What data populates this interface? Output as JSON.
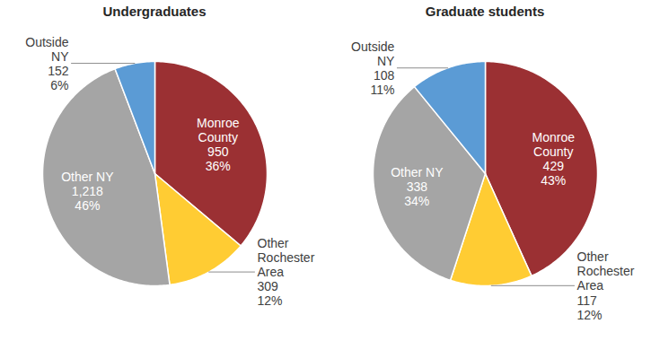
{
  "chart_data": [
    {
      "type": "pie",
      "title": "Undergraduates",
      "categories": [
        "Monroe County",
        "Other Rochester Area",
        "Other NY",
        "Outside NY"
      ],
      "values": [
        950,
        309,
        1218,
        152
      ],
      "value_labels": [
        "950",
        "309",
        "1,218",
        "152"
      ],
      "percentages": [
        36,
        12,
        46,
        6
      ],
      "percentage_labels": [
        "36%",
        "12%",
        "46%",
        "6%"
      ],
      "colors": [
        "#9b3033",
        "#ffcc33",
        "#a5a5a5",
        "#5b9bd5"
      ],
      "data_labels": true
    },
    {
      "type": "pie",
      "title": "Graduate students",
      "categories": [
        "Monroe County",
        "Other Rochester Area",
        "Other NY",
        "Outside NY"
      ],
      "values": [
        429,
        117,
        338,
        108
      ],
      "value_labels": [
        "429",
        "117",
        "338",
        "108"
      ],
      "percentages": [
        43,
        12,
        34,
        11
      ],
      "percentage_labels": [
        "43%",
        "12%",
        "34%",
        "11%"
      ],
      "colors": [
        "#9b3033",
        "#ffcc33",
        "#a5a5a5",
        "#5b9bd5"
      ],
      "data_labels": true
    }
  ]
}
